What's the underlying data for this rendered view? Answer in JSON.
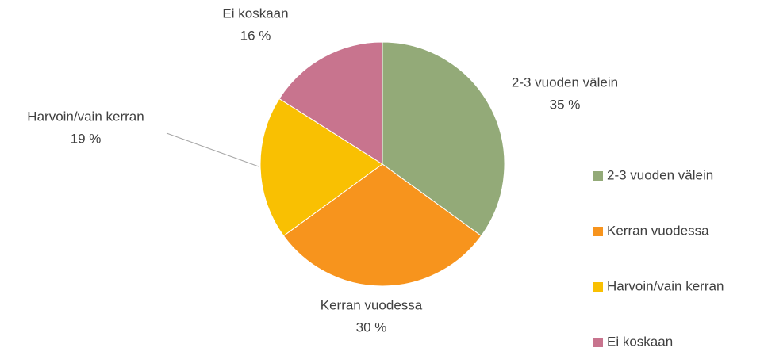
{
  "chart_data": {
    "type": "pie",
    "categories": [
      "2-3 vuoden välein",
      "Kerran vuodessa",
      "Harvoin/vain kerran",
      "Ei koskaan"
    ],
    "values": [
      35,
      30,
      19,
      16
    ],
    "value_labels": [
      "35 %",
      "30 %",
      "19 %",
      "16 %"
    ],
    "colors": [
      "#93aa78",
      "#f7941d",
      "#f9c002",
      "#c8748e"
    ],
    "legend": "right"
  }
}
